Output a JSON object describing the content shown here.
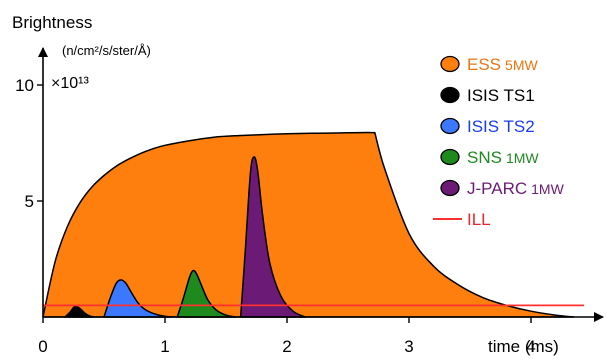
{
  "chart_data": {
    "type": "area",
    "ylabel": "Brightness",
    "yunit": "(n/cm²/s/ster/Å)",
    "ymultiplier": "×10¹³",
    "xlabel": "time (ms)",
    "xlim": [
      0,
      4.5
    ],
    "ylim": [
      0,
      10
    ],
    "xticks": [
      0,
      1,
      2,
      3,
      4
    ],
    "yticks": [
      5,
      10
    ],
    "grid": false,
    "legend_position": "right",
    "series": [
      {
        "name": "ESS",
        "power": "5MW",
        "color": "#ff7f0e",
        "label_color": "#e8760f",
        "x": [
          0,
          0.1,
          0.2,
          0.3,
          0.4,
          0.5,
          0.6,
          0.7,
          0.8,
          0.9,
          1.0,
          1.2,
          1.4,
          1.6,
          1.8,
          2.0,
          2.2,
          2.4,
          2.6,
          2.72,
          2.8,
          3.0,
          3.2,
          3.4,
          3.6,
          3.8,
          4.0,
          4.2,
          4.35
        ],
        "y": [
          0,
          2.4,
          3.9,
          4.9,
          5.6,
          6.1,
          6.5,
          6.8,
          7.05,
          7.25,
          7.4,
          7.6,
          7.75,
          7.82,
          7.86,
          7.9,
          7.92,
          7.93,
          7.95,
          7.95,
          6.4,
          3.6,
          2.2,
          1.4,
          0.85,
          0.5,
          0.25,
          0.08,
          0
        ]
      },
      {
        "name": "ISIS TS1",
        "power": "",
        "color": "#000000",
        "label_color": "#000000",
        "x": [
          0.18,
          0.22,
          0.26,
          0.3,
          0.34,
          0.38,
          0.42
        ],
        "y": [
          0,
          0.2,
          0.45,
          0.38,
          0.18,
          0.05,
          0
        ]
      },
      {
        "name": "ISIS TS2",
        "power": "",
        "color": "#3c78ff",
        "label_color": "#1a3cf0",
        "x": [
          0.5,
          0.55,
          0.6,
          0.64,
          0.68,
          0.72,
          0.78,
          0.85,
          0.95,
          1.05
        ],
        "y": [
          0,
          0.8,
          1.45,
          1.6,
          1.45,
          1.1,
          0.6,
          0.28,
          0.08,
          0
        ]
      },
      {
        "name": "SNS",
        "power": "1MW",
        "color": "#1e8a1e",
        "label_color": "#1e8a1e",
        "x": [
          1.1,
          1.15,
          1.2,
          1.23,
          1.26,
          1.3,
          1.35,
          1.42,
          1.5,
          1.58
        ],
        "y": [
          0,
          0.8,
          1.7,
          2.0,
          1.85,
          1.35,
          0.75,
          0.3,
          0.08,
          0
        ]
      },
      {
        "name": "J-PARC",
        "power": "1MW",
        "color": "#6b1a75",
        "label_color": "#6b1a75",
        "x": [
          1.62,
          1.66,
          1.7,
          1.73,
          1.76,
          1.8,
          1.86,
          1.95,
          2.05,
          2.15
        ],
        "y": [
          0,
          3.0,
          6.2,
          6.9,
          6.3,
          4.4,
          2.3,
          0.9,
          0.25,
          0
        ]
      },
      {
        "name": "ILL",
        "power": "",
        "color": "#ff3030",
        "label_color": "#e8262b",
        "x": [
          0,
          4.5
        ],
        "y": [
          0.5,
          0.5
        ]
      }
    ]
  }
}
